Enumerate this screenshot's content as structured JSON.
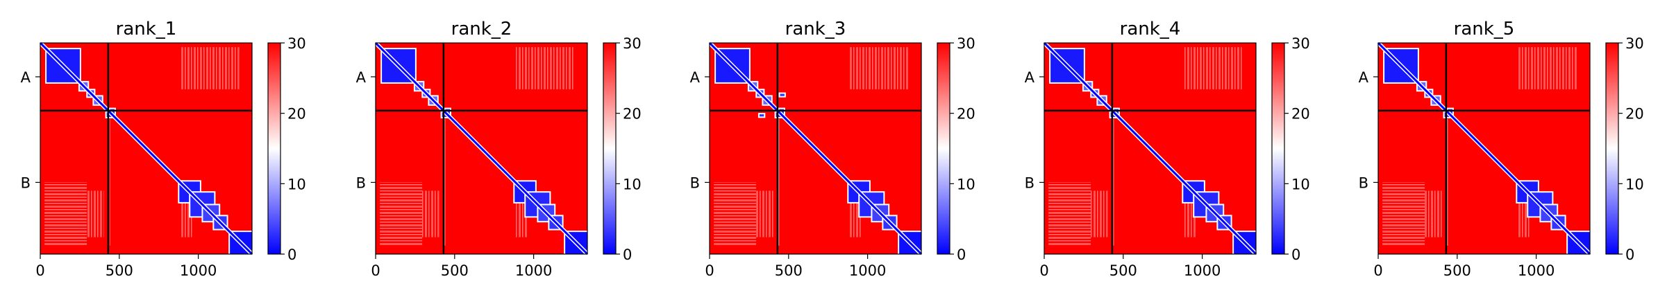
{
  "colors": {
    "high": "#ff0000",
    "mid": "#ffffff",
    "low": "#0000ff",
    "divider": "#000000"
  },
  "chart_data": [
    {
      "type": "heatmap",
      "title": "rank_1",
      "xticks": [
        0,
        500,
        1000
      ],
      "xlim": [
        0,
        1340
      ],
      "yticklabels": [
        "A",
        "B"
      ],
      "chain_boundary": 430,
      "colorbar": {
        "range": [
          0,
          30
        ],
        "ticks": [
          0,
          10,
          20,
          30
        ],
        "cmap": "bwr"
      },
      "offdiag_blocks": []
    },
    {
      "type": "heatmap",
      "title": "rank_2",
      "xticks": [
        0,
        500,
        1000
      ],
      "xlim": [
        0,
        1340
      ],
      "yticklabels": [
        "A",
        "B"
      ],
      "chain_boundary": 430,
      "colorbar": {
        "range": [
          0,
          30
        ],
        "ticks": [
          0,
          10,
          20,
          30
        ],
        "cmap": "bwr"
      },
      "offdiag_blocks": []
    },
    {
      "type": "heatmap",
      "title": "rank_3",
      "xticks": [
        0,
        500,
        1000
      ],
      "xlim": [
        0,
        1340
      ],
      "yticklabels": [
        "A",
        "B"
      ],
      "chain_boundary": 430,
      "colorbar": {
        "range": [
          0,
          30
        ],
        "ticks": [
          0,
          10,
          20,
          30
        ],
        "cmap": "bwr"
      },
      "offdiag_blocks": [
        [
          460,
          330,
          14
        ],
        [
          330,
          460,
          14
        ]
      ]
    },
    {
      "type": "heatmap",
      "title": "rank_4",
      "xticks": [
        0,
        500,
        1000
      ],
      "xlim": [
        0,
        1340
      ],
      "yticklabels": [
        "A",
        "B"
      ],
      "chain_boundary": 430,
      "colorbar": {
        "range": [
          0,
          30
        ],
        "ticks": [
          0,
          10,
          20,
          30
        ],
        "cmap": "bwr"
      },
      "offdiag_blocks": []
    },
    {
      "type": "heatmap",
      "title": "rank_5",
      "xticks": [
        0,
        500,
        1000
      ],
      "xlim": [
        0,
        1340
      ],
      "yticklabels": [
        "A",
        "B"
      ],
      "chain_boundary": 430,
      "colorbar": {
        "range": [
          0,
          30
        ],
        "ticks": [
          0,
          10,
          20,
          30
        ],
        "cmap": "bwr"
      },
      "offdiag_blocks": []
    }
  ]
}
